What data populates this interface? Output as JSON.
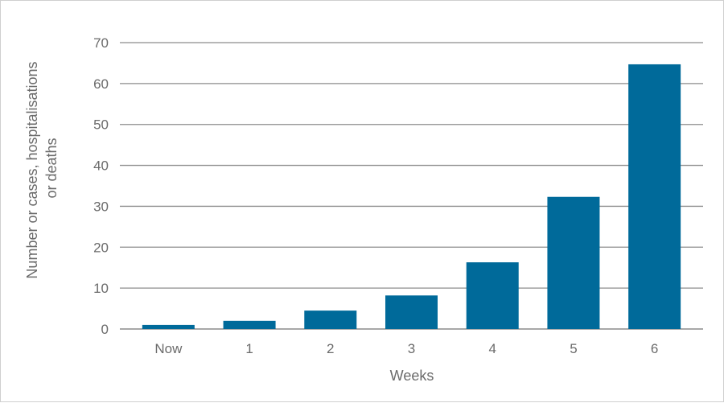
{
  "chart_data": {
    "type": "bar",
    "categories": [
      "Now",
      "1",
      "2",
      "3",
      "4",
      "5",
      "6"
    ],
    "values": [
      1,
      2,
      4.5,
      8.2,
      16.3,
      32.3,
      64.7
    ],
    "xlabel": "Weeks",
    "ylabel_lines": [
      "Number or cases, hospitalisations",
      "or deaths"
    ],
    "ylim": [
      0,
      70
    ],
    "yticks": [
      0,
      10,
      20,
      30,
      40,
      50,
      60,
      70
    ],
    "grid": true,
    "legend": "none",
    "bar_color": "#006a9a",
    "grid_color": "#8c8c8c"
  }
}
